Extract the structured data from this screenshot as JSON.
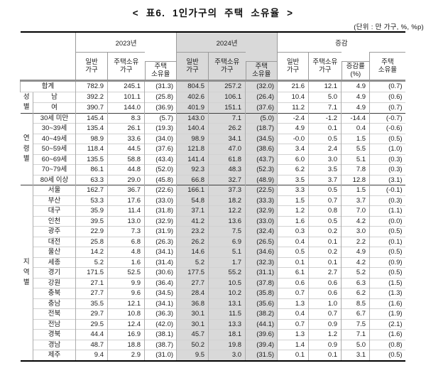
{
  "title": "< 표6. 1인가구의 주택 소유율 >",
  "unit_note": "(단위 : 만 가구, %, %p)",
  "table": {
    "highlight_bg": "#d9d9d9",
    "year_groups": [
      {
        "label": "2023년"
      },
      {
        "label": "2024년"
      },
      {
        "label": "증감"
      }
    ],
    "sub_headers": [
      "일반\n가구",
      "주택소유\n가구",
      "주택\n소유율",
      "일반\n가구",
      "주택소유\n가구",
      "주택\n소유율",
      "일반\n가구",
      "주택소유\n가구",
      "증감률\n(%)",
      "주택\n소유율"
    ],
    "total_row": {
      "label": "합계",
      "values": [
        "782.9",
        "245.1",
        "(31.3)",
        "804.5",
        "257.2",
        "(32.0)",
        "21.6",
        "12.1",
        "4.9",
        "(0.7)"
      ]
    },
    "groups": [
      {
        "label": "성별",
        "rows": [
          {
            "label": "남",
            "values": [
              "392.2",
              "101.1",
              "(25.8)",
              "402.6",
              "106.1",
              "(26.4)",
              "10.4",
              "5.0",
              "4.9",
              "(0.6)"
            ]
          },
          {
            "label": "여",
            "values": [
              "390.7",
              "144.0",
              "(36.9)",
              "401.9",
              "151.1",
              "(37.6)",
              "11.2",
              "7.1",
              "4.9",
              "(0.7)"
            ]
          }
        ]
      },
      {
        "label": "연령별",
        "rows": [
          {
            "label": "30세 미만",
            "values": [
              "145.4",
              "8.3",
              "(5.7)",
              "143.0",
              "7.1",
              "(5.0)",
              "-2.4",
              "-1.2",
              "-14.4",
              "(-0.7)"
            ]
          },
          {
            "label": "30~39세",
            "values": [
              "135.4",
              "26.1",
              "(19.3)",
              "140.4",
              "26.2",
              "(18.7)",
              "4.9",
              "0.1",
              "0.4",
              "(-0.6)"
            ]
          },
          {
            "label": "40~49세",
            "values": [
              "98.9",
              "33.6",
              "(34.0)",
              "98.9",
              "34.1",
              "(34.5)",
              "-0.0",
              "0.5",
              "1.5",
              "(0.5)"
            ]
          },
          {
            "label": "50~59세",
            "values": [
              "118.4",
              "44.5",
              "(37.6)",
              "121.8",
              "47.0",
              "(38.6)",
              "3.4",
              "2.4",
              "5.5",
              "(1.0)"
            ]
          },
          {
            "label": "60~69세",
            "values": [
              "135.5",
              "58.8",
              "(43.4)",
              "141.4",
              "61.8",
              "(43.7)",
              "6.0",
              "3.0",
              "5.1",
              "(0.3)"
            ]
          },
          {
            "label": "70~79세",
            "values": [
              "86.1",
              "44.8",
              "(52.0)",
              "92.3",
              "48.3",
              "(52.3)",
              "6.2",
              "3.5",
              "7.8",
              "(0.3)"
            ]
          },
          {
            "label": "80세 이상",
            "values": [
              "63.3",
              "29.0",
              "(45.8)",
              "66.8",
              "32.7",
              "(48.9)",
              "3.5",
              "3.7",
              "12.8",
              "(3.1)"
            ]
          }
        ]
      },
      {
        "label": "지역별",
        "rows": [
          {
            "label": "서울",
            "values": [
              "162.7",
              "36.7",
              "(22.6)",
              "166.1",
              "37.3",
              "(22.5)",
              "3.3",
              "0.5",
              "1.5",
              "(-0.1)"
            ]
          },
          {
            "label": "부산",
            "values": [
              "53.3",
              "17.6",
              "(33.0)",
              "54.8",
              "18.2",
              "(33.3)",
              "1.5",
              "0.7",
              "3.7",
              "(0.3)"
            ]
          },
          {
            "label": "대구",
            "values": [
              "35.9",
              "11.4",
              "(31.8)",
              "37.1",
              "12.2",
              "(32.9)",
              "1.2",
              "0.8",
              "7.0",
              "(1.1)"
            ]
          },
          {
            "label": "인천",
            "values": [
              "39.5",
              "13.0",
              "(32.9)",
              "41.2",
              "13.6",
              "(33.0)",
              "1.6",
              "0.5",
              "4.2",
              "(0.0)"
            ]
          },
          {
            "label": "광주",
            "values": [
              "22.9",
              "7.3",
              "(31.9)",
              "23.2",
              "7.5",
              "(32.4)",
              "0.3",
              "0.2",
              "3.0",
              "(0.5)"
            ]
          },
          {
            "label": "대전",
            "values": [
              "25.8",
              "6.8",
              "(26.3)",
              "26.2",
              "6.9",
              "(26.5)",
              "0.4",
              "0.1",
              "2.2",
              "(0.1)"
            ]
          },
          {
            "label": "울산",
            "values": [
              "14.2",
              "4.8",
              "(34.1)",
              "14.6",
              "5.1",
              "(34.6)",
              "0.5",
              "0.2",
              "4.9",
              "(0.5)"
            ]
          },
          {
            "label": "세종",
            "values": [
              "5.2",
              "1.6",
              "(31.4)",
              "5.2",
              "1.7",
              "(32.3)",
              "0.1",
              "0.1",
              "4.2",
              "(0.9)"
            ]
          },
          {
            "label": "경기",
            "values": [
              "171.5",
              "52.5",
              "(30.6)",
              "177.5",
              "55.2",
              "(31.1)",
              "6.1",
              "2.7",
              "5.2",
              "(0.5)"
            ]
          },
          {
            "label": "강원",
            "values": [
              "27.1",
              "9.9",
              "(36.4)",
              "27.7",
              "10.5",
              "(37.8)",
              "0.6",
              "0.6",
              "6.3",
              "(1.5)"
            ]
          },
          {
            "label": "충북",
            "values": [
              "27.7",
              "9.6",
              "(34.5)",
              "28.4",
              "10.2",
              "(35.8)",
              "0.7",
              "0.6",
              "6.2",
              "(1.3)"
            ]
          },
          {
            "label": "충남",
            "values": [
              "35.5",
              "12.1",
              "(34.1)",
              "36.8",
              "13.1",
              "(35.6)",
              "1.3",
              "1.0",
              "8.5",
              "(1.6)"
            ]
          },
          {
            "label": "전북",
            "values": [
              "29.7",
              "10.8",
              "(36.3)",
              "30.1",
              "11.5",
              "(38.2)",
              "0.4",
              "0.7",
              "6.7",
              "(1.9)"
            ]
          },
          {
            "label": "전남",
            "values": [
              "29.5",
              "12.4",
              "(42.0)",
              "30.1",
              "13.3",
              "(44.1)",
              "0.7",
              "0.9",
              "7.5",
              "(2.1)"
            ]
          },
          {
            "label": "경북",
            "values": [
              "44.4",
              "16.9",
              "(38.1)",
              "45.7",
              "18.1",
              "(39.6)",
              "1.3",
              "1.2",
              "7.1",
              "(1.6)"
            ]
          },
          {
            "label": "경남",
            "values": [
              "48.7",
              "18.8",
              "(38.7)",
              "50.2",
              "19.8",
              "(39.4)",
              "1.4",
              "0.9",
              "5.0",
              "(0.8)"
            ]
          },
          {
            "label": "제주",
            "values": [
              "9.4",
              "2.9",
              "(31.0)",
              "9.5",
              "3.0",
              "(31.5)",
              "0.1",
              "0.1",
              "3.1",
              "(0.5)"
            ]
          }
        ]
      }
    ]
  }
}
